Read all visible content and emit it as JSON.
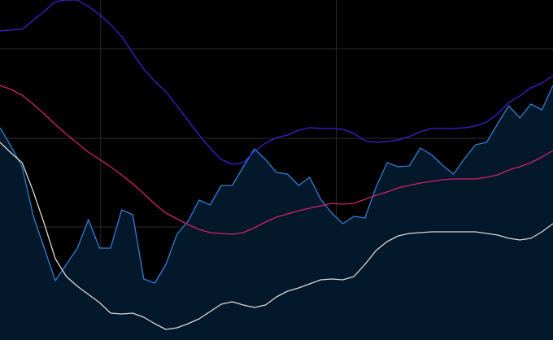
{
  "chart_data": {
    "type": "line",
    "x": [
      0,
      1,
      2,
      3,
      4,
      5,
      6,
      7,
      8,
      9,
      10,
      11,
      12,
      13,
      14,
      15,
      16,
      17,
      18,
      19,
      20,
      21,
      22,
      23,
      24,
      25,
      26,
      27,
      28,
      29,
      30,
      31,
      32,
      33,
      34,
      35,
      36,
      37,
      38,
      39,
      40,
      41,
      42,
      43,
      44,
      45,
      46,
      47,
      48,
      49,
      50
    ],
    "xlim": [
      0,
      50
    ],
    "ylim": [
      0,
      418
    ],
    "xticks": [
      9.1,
      30.4
    ],
    "yticks": [
      30,
      139,
      248,
      358
    ],
    "grid": true,
    "series": [
      {
        "color": "#2f7fd6",
        "fill": "#04182b",
        "values": [
          261,
          238,
          213,
          153,
          113,
          73,
          93,
          113,
          148,
          113,
          113,
          160,
          154,
          75,
          70,
          93,
          130,
          146,
          172,
          166,
          190,
          190,
          213,
          235,
          222,
          206,
          204,
          190,
          200,
          173,
          156,
          143,
          152,
          150,
          188,
          218,
          213,
          214,
          236,
          228,
          215,
          204,
          223,
          240,
          243,
          266,
          288,
          273,
          290,
          283,
          313
        ]
      },
      {
        "color": "#3a22d0",
        "values": [
          380,
          381,
          382,
          393,
          404,
          416,
          418,
          418,
          410,
          400,
          388,
          373,
          353,
          333,
          318,
          305,
          288,
          270,
          252,
          236,
          222,
          216,
          218,
          232,
          242,
          249,
          252,
          258,
          261,
          260,
          260,
          259,
          254,
          245,
          243,
          244,
          246,
          250,
          256,
          260,
          260,
          260,
          261,
          263,
          268,
          278,
          292,
          300,
          310,
          316,
          325
        ]
      },
      {
        "color": "#d2206c",
        "values": [
          313,
          308,
          301,
          290,
          278,
          265,
          253,
          242,
          231,
          222,
          213,
          203,
          192,
          180,
          167,
          156,
          149,
          142,
          136,
          132,
          131,
          130,
          132,
          138,
          145,
          151,
          155,
          159,
          162,
          165,
          168,
          167,
          168,
          173,
          178,
          182,
          187,
          190,
          193,
          195,
          197,
          198,
          198,
          198,
          200,
          203,
          209,
          213,
          218,
          225,
          233
        ]
      },
      {
        "color": "#d8d8d8",
        "values": [
          243,
          230,
          218,
          183,
          143,
          100,
          78,
          66,
          56,
          46,
          33,
          32,
          33,
          28,
          20,
          13,
          15,
          20,
          26,
          35,
          44,
          47,
          43,
          40,
          43,
          53,
          60,
          64,
          69,
          74,
          75,
          74,
          78,
          93,
          110,
          121,
          128,
          131,
          132,
          133,
          133,
          133,
          133,
          133,
          131,
          129,
          125,
          123,
          125,
          133,
          143
        ]
      }
    ]
  }
}
